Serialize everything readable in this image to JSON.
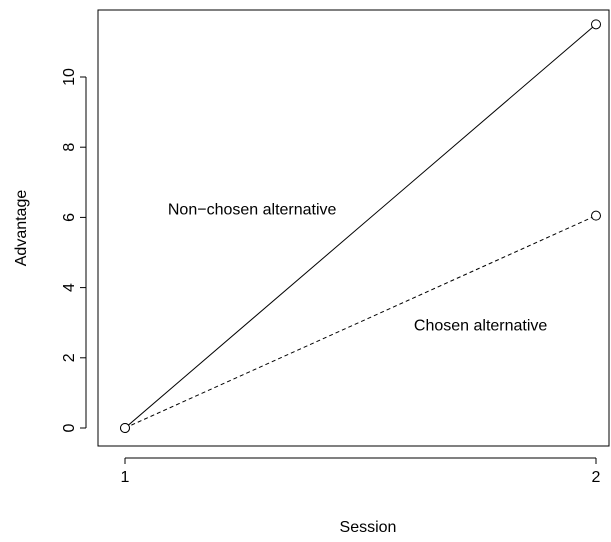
{
  "chart_data": {
    "type": "line",
    "xlabel": "Session",
    "ylabel": "Advantage",
    "xlim": [
      1,
      2
    ],
    "ylim": [
      0,
      11.5
    ],
    "x_ticks": [
      1,
      2
    ],
    "y_ticks": [
      0,
      2,
      4,
      6,
      8,
      10
    ],
    "series": [
      {
        "x": [
          1,
          2
        ],
        "values": [
          0,
          11.5
        ],
        "line": "solid",
        "marker": "open-circle"
      },
      {
        "x": [
          1,
          2
        ],
        "values": [
          0,
          6.05
        ],
        "line": "dashed",
        "marker": "open-circle"
      }
    ],
    "annotations": [
      {
        "text": "Non−chosen alternative",
        "x": 1.27,
        "y": 6.2
      },
      {
        "text": "Chosen alternative",
        "x": 1.755,
        "y": 2.9
      }
    ],
    "grid": false,
    "box": true
  }
}
